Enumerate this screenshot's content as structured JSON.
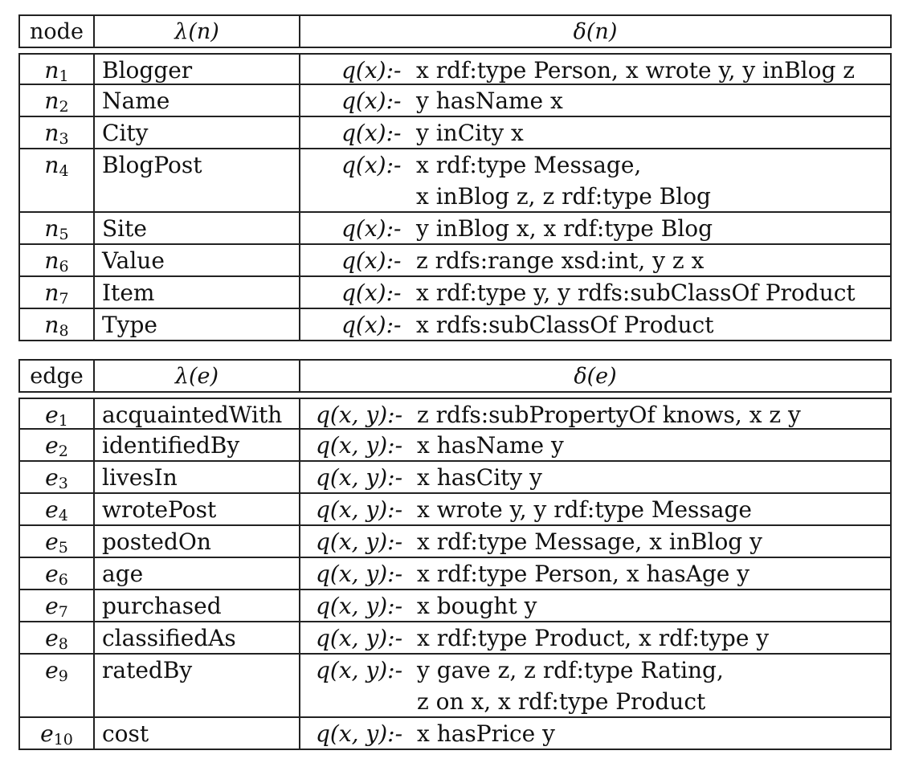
{
  "node_table": {
    "header": {
      "id": "node",
      "label": "λ(n)",
      "def": "δ(n)"
    },
    "rows": [
      {
        "id": "n",
        "sub": "1",
        "label": "Blogger",
        "head": "q(x):-",
        "lines": [
          "x rdf:type Person, x wrote y, y inBlog z"
        ]
      },
      {
        "id": "n",
        "sub": "2",
        "label": "Name",
        "head": "q(x):-",
        "lines": [
          "y hasName x"
        ]
      },
      {
        "id": "n",
        "sub": "3",
        "label": "City",
        "head": "q(x):-",
        "lines": [
          "y inCity x"
        ]
      },
      {
        "id": "n",
        "sub": "4",
        "label": "BlogPost",
        "head": "q(x):-",
        "lines": [
          "x rdf:type Message,",
          "x inBlog z, z rdf:type Blog"
        ]
      },
      {
        "id": "n",
        "sub": "5",
        "label": "Site",
        "head": "q(x):-",
        "lines": [
          "y inBlog x, x rdf:type Blog"
        ]
      },
      {
        "id": "n",
        "sub": "6",
        "label": "Value",
        "head": "q(x):-",
        "lines": [
          "z rdfs:range xsd:int, y z x"
        ]
      },
      {
        "id": "n",
        "sub": "7",
        "label": "Item",
        "head": "q(x):-",
        "lines": [
          "x rdf:type y, y rdfs:subClassOf Product"
        ]
      },
      {
        "id": "n",
        "sub": "8",
        "label": "Type",
        "head": "q(x):-",
        "lines": [
          "x rdfs:subClassOf Product"
        ]
      }
    ]
  },
  "edge_table": {
    "header": {
      "id": "edge",
      "label": "λ(e)",
      "def": "δ(e)"
    },
    "rows": [
      {
        "id": "e",
        "sub": "1",
        "label": "acquaintedWith",
        "head": "q(x, y):-",
        "lines": [
          "z rdfs:subPropertyOf knows, x z y"
        ]
      },
      {
        "id": "e",
        "sub": "2",
        "label": "identifiedBy",
        "head": "q(x, y):-",
        "lines": [
          "x hasName y"
        ]
      },
      {
        "id": "e",
        "sub": "3",
        "label": "livesIn",
        "head": "q(x, y):-",
        "lines": [
          "x hasCity y"
        ]
      },
      {
        "id": "e",
        "sub": "4",
        "label": "wrotePost",
        "head": "q(x, y):-",
        "lines": [
          "x wrote y, y rdf:type Message"
        ]
      },
      {
        "id": "e",
        "sub": "5",
        "label": "postedOn",
        "head": "q(x, y):-",
        "lines": [
          "x rdf:type Message, x inBlog y"
        ]
      },
      {
        "id": "e",
        "sub": "6",
        "label": "age",
        "head": "q(x, y):-",
        "lines": [
          "x rdf:type Person, x hasAge y"
        ]
      },
      {
        "id": "e",
        "sub": "7",
        "label": "purchased",
        "head": "q(x, y):-",
        "lines": [
          "x bought y"
        ]
      },
      {
        "id": "e",
        "sub": "8",
        "label": "classifiedAs",
        "head": "q(x, y):-",
        "lines": [
          "x rdf:type Product, x rdf:type y"
        ]
      },
      {
        "id": "e",
        "sub": "9",
        "label": "ratedBy",
        "head": "q(x, y):-",
        "lines": [
          "y gave z, z rdf:type Rating,",
          "z on x, x rdf:type Product"
        ]
      },
      {
        "id": "e",
        "sub": "10",
        "label": "cost",
        "head": "q(x, y):-",
        "lines": [
          "x hasPrice y"
        ]
      }
    ]
  }
}
